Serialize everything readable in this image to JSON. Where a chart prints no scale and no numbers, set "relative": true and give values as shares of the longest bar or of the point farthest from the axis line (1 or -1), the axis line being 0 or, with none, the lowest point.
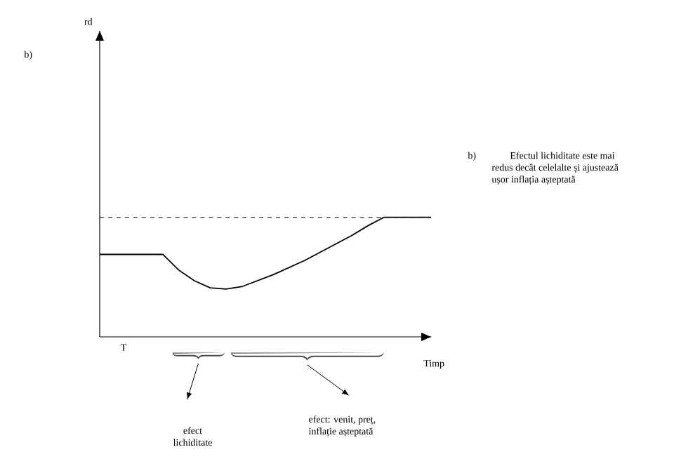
{
  "chart_data": {
    "type": "line",
    "title": "b)",
    "xlabel": "Timp",
    "relative": true,
    "categories": [
      null,
      null,
      null,
      null,
      null,
      null,
      null,
      null,
      null,
      null,
      null,
      null,
      null,
      null,
      null,
      null,
      null,
      null,
      null,
      null,
      null,
      null
    ],
    "values": [
      0.69,
      0.69,
      0.69,
      0.69,
      0.69,
      0.56,
      0.47,
      0.41,
      0.4,
      0.42,
      0.47,
      0.52,
      0.58,
      0.64,
      0.71,
      0.78,
      0.85,
      0.93,
      1,
      1,
      1,
      1
    ],
    "color": "#000000",
    "ref_lines": [
      {
        "axis": "y",
        "value": 1,
        "line_style": "dashed",
        "color": "#000000"
      }
    ],
    "annotations": [
      "rd",
      "T",
      "efect lichiditate",
      "efect: venit, preț, inflație așteptată",
      "b)",
      "Efectul lichiditate este mai redus decât celelalte și ajustează ușor inflația așteptată"
    ]
  }
}
